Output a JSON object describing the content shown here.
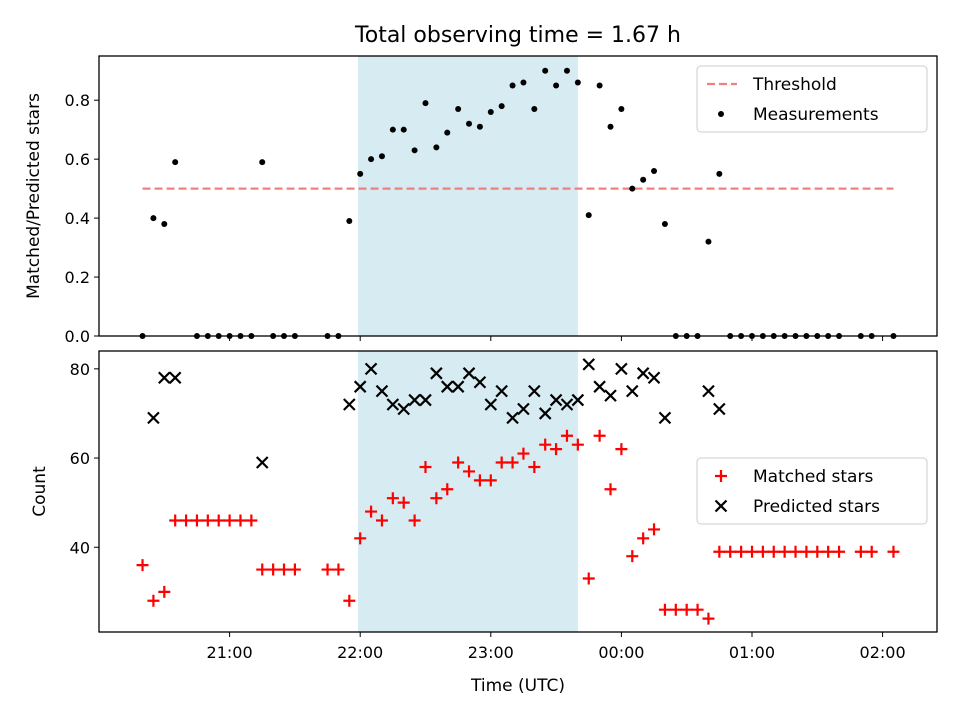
{
  "title": "Total observing time = 1.67 h",
  "x_label": "Time (UTC)",
  "chart_data": [
    {
      "type": "scatter",
      "ylabel": "Matched/Predicted stars",
      "ylim": [
        0,
        0.95
      ],
      "yticks": [
        0.0,
        0.2,
        0.4,
        0.6,
        0.8
      ],
      "highlight_span": [
        "21:59",
        "23:40"
      ],
      "threshold": {
        "name": "Threshold",
        "y": 0.5,
        "x_start": "20:20",
        "x_end": "02:05",
        "color": "#f08080"
      },
      "legend": [
        "Threshold",
        "Measurements"
      ],
      "legend_position": "top-right",
      "series": [
        {
          "name": "Measurements",
          "color": "#000000",
          "points": [
            [
              "20:20",
              0
            ],
            [
              "20:25",
              0.4
            ],
            [
              "20:30",
              0.38
            ],
            [
              "20:35",
              0.59
            ],
            [
              "20:45",
              0
            ],
            [
              "20:50",
              0
            ],
            [
              "20:55",
              0
            ],
            [
              "21:00",
              0
            ],
            [
              "21:05",
              0
            ],
            [
              "21:10",
              0
            ],
            [
              "21:15",
              0.59
            ],
            [
              "21:20",
              0
            ],
            [
              "21:25",
              0
            ],
            [
              "21:30",
              0
            ],
            [
              "21:45",
              0
            ],
            [
              "21:50",
              0
            ],
            [
              "21:55",
              0.39
            ],
            [
              "22:00",
              0.55
            ],
            [
              "22:05",
              0.6
            ],
            [
              "22:10",
              0.61
            ],
            [
              "22:15",
              0.7
            ],
            [
              "22:20",
              0.7
            ],
            [
              "22:25",
              0.63
            ],
            [
              "22:30",
              0.79
            ],
            [
              "22:35",
              0.64
            ],
            [
              "22:40",
              0.69
            ],
            [
              "22:45",
              0.77
            ],
            [
              "22:50",
              0.72
            ],
            [
              "22:55",
              0.71
            ],
            [
              "23:00",
              0.76
            ],
            [
              "23:05",
              0.78
            ],
            [
              "23:10",
              0.85
            ],
            [
              "23:15",
              0.86
            ],
            [
              "23:20",
              0.77
            ],
            [
              "23:25",
              0.9
            ],
            [
              "23:30",
              0.85
            ],
            [
              "23:35",
              0.9
            ],
            [
              "23:40",
              0.86
            ],
            [
              "23:45",
              0.41
            ],
            [
              "23:50",
              0.85
            ],
            [
              "23:55",
              0.71
            ],
            [
              "00:00",
              0.77
            ],
            [
              "00:05",
              0.5
            ],
            [
              "00:10",
              0.53
            ],
            [
              "00:15",
              0.56
            ],
            [
              "00:20",
              0.38
            ],
            [
              "00:25",
              0
            ],
            [
              "00:30",
              0
            ],
            [
              "00:35",
              0
            ],
            [
              "00:40",
              0.32
            ],
            [
              "00:45",
              0.55
            ],
            [
              "00:50",
              0
            ],
            [
              "00:55",
              0
            ],
            [
              "01:00",
              0
            ],
            [
              "01:05",
              0
            ],
            [
              "01:10",
              0
            ],
            [
              "01:15",
              0
            ],
            [
              "01:20",
              0
            ],
            [
              "01:25",
              0
            ],
            [
              "01:30",
              0
            ],
            [
              "01:35",
              0
            ],
            [
              "01:40",
              0
            ],
            [
              "01:50",
              0
            ],
            [
              "01:55",
              0
            ],
            [
              "02:05",
              0
            ]
          ]
        }
      ]
    },
    {
      "type": "scatter",
      "ylabel": "Count",
      "ylim": [
        21,
        84
      ],
      "yticks": [
        40,
        60,
        80
      ],
      "xticks": [
        "21:00",
        "22:00",
        "23:00",
        "00:00",
        "01:00",
        "02:00"
      ],
      "highlight_span": [
        "21:59",
        "23:40"
      ],
      "legend": [
        "Matched stars",
        "Predicted stars"
      ],
      "legend_position": "center-right",
      "series": [
        {
          "name": "Matched stars",
          "marker": "+",
          "color": "#ff0000",
          "points": [
            [
              "20:20",
              36
            ],
            [
              "20:25",
              28
            ],
            [
              "20:30",
              30
            ],
            [
              "20:35",
              46
            ],
            [
              "20:40",
              46
            ],
            [
              "20:45",
              46
            ],
            [
              "20:50",
              46
            ],
            [
              "20:55",
              46
            ],
            [
              "21:00",
              46
            ],
            [
              "21:05",
              46
            ],
            [
              "21:10",
              46
            ],
            [
              "21:15",
              35
            ],
            [
              "21:20",
              35
            ],
            [
              "21:25",
              35
            ],
            [
              "21:30",
              35
            ],
            [
              "21:45",
              35
            ],
            [
              "21:50",
              35
            ],
            [
              "21:55",
              28
            ],
            [
              "22:00",
              42
            ],
            [
              "22:05",
              48
            ],
            [
              "22:10",
              46
            ],
            [
              "22:15",
              51
            ],
            [
              "22:20",
              50
            ],
            [
              "22:25",
              46
            ],
            [
              "22:30",
              58
            ],
            [
              "22:35",
              51
            ],
            [
              "22:40",
              53
            ],
            [
              "22:45",
              59
            ],
            [
              "22:50",
              57
            ],
            [
              "22:55",
              55
            ],
            [
              "23:00",
              55
            ],
            [
              "23:05",
              59
            ],
            [
              "23:10",
              59
            ],
            [
              "23:15",
              61
            ],
            [
              "23:20",
              58
            ],
            [
              "23:25",
              63
            ],
            [
              "23:30",
              62
            ],
            [
              "23:35",
              65
            ],
            [
              "23:40",
              63
            ],
            [
              "23:45",
              33
            ],
            [
              "23:50",
              65
            ],
            [
              "23:55",
              53
            ],
            [
              "00:00",
              62
            ],
            [
              "00:05",
              38
            ],
            [
              "00:10",
              42
            ],
            [
              "00:15",
              44
            ],
            [
              "00:20",
              26
            ],
            [
              "00:25",
              26
            ],
            [
              "00:30",
              26
            ],
            [
              "00:35",
              26
            ],
            [
              "00:40",
              24
            ],
            [
              "00:45",
              39
            ],
            [
              "00:50",
              39
            ],
            [
              "00:55",
              39
            ],
            [
              "01:00",
              39
            ],
            [
              "01:05",
              39
            ],
            [
              "01:10",
              39
            ],
            [
              "01:15",
              39
            ],
            [
              "01:20",
              39
            ],
            [
              "01:25",
              39
            ],
            [
              "01:30",
              39
            ],
            [
              "01:35",
              39
            ],
            [
              "01:40",
              39
            ],
            [
              "01:50",
              39
            ],
            [
              "01:55",
              39
            ],
            [
              "02:05",
              39
            ]
          ]
        },
        {
          "name": "Predicted stars",
          "marker": "x",
          "color": "#000000",
          "points": [
            [
              "20:25",
              69
            ],
            [
              "20:30",
              78
            ],
            [
              "20:35",
              78
            ],
            [
              "21:15",
              59
            ],
            [
              "21:55",
              72
            ],
            [
              "22:00",
              76
            ],
            [
              "22:05",
              80
            ],
            [
              "22:10",
              75
            ],
            [
              "22:15",
              72
            ],
            [
              "22:20",
              71
            ],
            [
              "22:25",
              73
            ],
            [
              "22:30",
              73
            ],
            [
              "22:35",
              79
            ],
            [
              "22:40",
              76
            ],
            [
              "22:45",
              76
            ],
            [
              "22:50",
              79
            ],
            [
              "22:55",
              77
            ],
            [
              "23:00",
              72
            ],
            [
              "23:05",
              75
            ],
            [
              "23:10",
              69
            ],
            [
              "23:15",
              71
            ],
            [
              "23:20",
              75
            ],
            [
              "23:25",
              70
            ],
            [
              "23:30",
              73
            ],
            [
              "23:35",
              72
            ],
            [
              "23:40",
              73
            ],
            [
              "23:45",
              81
            ],
            [
              "23:50",
              76
            ],
            [
              "23:55",
              74
            ],
            [
              "00:00",
              80
            ],
            [
              "00:05",
              75
            ],
            [
              "00:10",
              79
            ],
            [
              "00:15",
              78
            ],
            [
              "00:20",
              69
            ],
            [
              "00:40",
              75
            ],
            [
              "00:45",
              71
            ]
          ]
        }
      ]
    }
  ]
}
